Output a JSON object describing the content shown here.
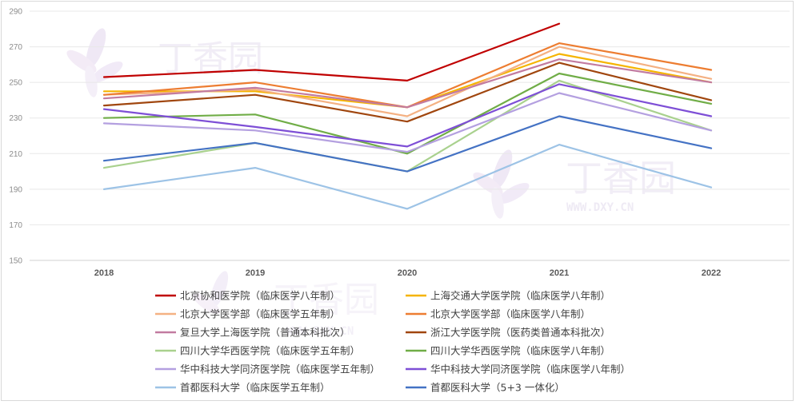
{
  "watermark": {
    "brand": "丁香园",
    "url": "WWW.DXY.CN"
  },
  "chart_data": {
    "type": "line",
    "title": "",
    "xlabel": "",
    "ylabel": "",
    "x": [
      "2018",
      "2019",
      "2020",
      "2021",
      "2022"
    ],
    "ylim": [
      150,
      290
    ],
    "yticks": [
      150,
      170,
      190,
      210,
      230,
      250,
      270,
      290
    ],
    "grid": true,
    "legend_position": "bottom",
    "series": [
      {
        "name": "北京协和医学院（临床医学八年制）",
        "color": "#c00000",
        "values": [
          253,
          257,
          251,
          283,
          null
        ]
      },
      {
        "name": "上海交通大学医学院（临床医学八年制）",
        "color": "#f5b400",
        "values": [
          245,
          245,
          236,
          266,
          250
        ]
      },
      {
        "name": "北京大学医学部（临床医学五年制）",
        "color": "#f4b183",
        "values": [
          243,
          246,
          231,
          270,
          252
        ]
      },
      {
        "name": "北京大学医学部（临床医学八年制）",
        "color": "#ed7d31",
        "values": [
          243,
          250,
          236,
          272,
          257
        ]
      },
      {
        "name": "复旦大学上海医学院（普通本科批次）",
        "color": "#c27ba0",
        "values": [
          241,
          247,
          236,
          263,
          250
        ]
      },
      {
        "name": "浙江大学医学院（医药类普通本科批次）",
        "color": "#a0460e",
        "values": [
          237,
          243,
          228,
          261,
          240
        ]
      },
      {
        "name": "四川大学华西医学院（临床医学五年制）",
        "color": "#a9d18e",
        "values": [
          202,
          216,
          200,
          251,
          223
        ]
      },
      {
        "name": "四川大学华西医学院（临床医学八年制）",
        "color": "#70ad47",
        "values": [
          230,
          232,
          210,
          255,
          238
        ]
      },
      {
        "name": "华中科技大学同济医学院（临床医学五年制）",
        "color": "#b4a0e0",
        "values": [
          227,
          223,
          211,
          244,
          223
        ]
      },
      {
        "name": "华中科技大学同济医学院（临床医学八年制）",
        "color": "#7e4fd6",
        "values": [
          235,
          225,
          214,
          249,
          231
        ]
      },
      {
        "name": "首都医科大学（临床医学五年制）",
        "color": "#9dc3e6",
        "values": [
          190,
          202,
          179,
          215,
          191
        ]
      },
      {
        "name": "首都医科大学（5+3 一体化）",
        "color": "#4472c4",
        "values": [
          206,
          216,
          200,
          231,
          213
        ]
      }
    ]
  }
}
